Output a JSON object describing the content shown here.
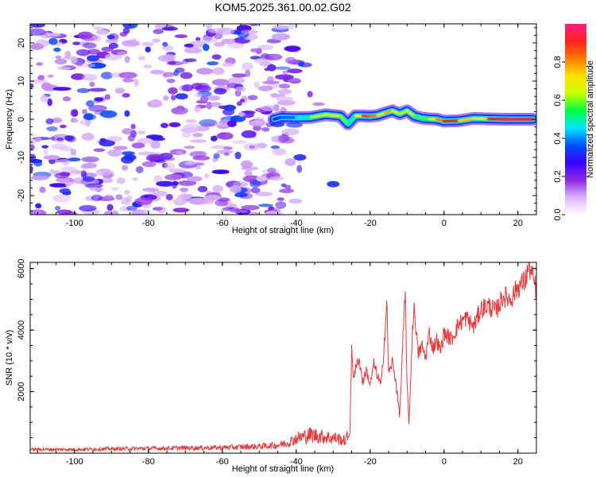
{
  "title": "KOM5.2025.361.00.02.G02",
  "colors": {
    "snr_line": "#e8383a",
    "axis": "#000000",
    "background": "#ffffff"
  },
  "chart_data": [
    {
      "type": "heatmap",
      "name": "spectrogram",
      "xlabel": "Height of straight line (km)",
      "ylabel": "Frequency (Hz)",
      "xlim": [
        -112,
        25
      ],
      "ylim": [
        -25,
        25
      ],
      "xticks": [
        -100,
        -80,
        -60,
        -40,
        -20,
        0,
        20
      ],
      "yticks": [
        -20,
        -10,
        0,
        10,
        20
      ],
      "xtick_labels": [
        "-100",
        "-80",
        "-60",
        "-40",
        "-20",
        "0",
        "20"
      ],
      "ytick_labels": [
        "-20",
        "-10",
        "0",
        "10",
        "20"
      ],
      "colorbar": {
        "label": "Normalized spectral amplitude",
        "range": [
          0,
          1
        ],
        "ticks": [
          0.0,
          0.2,
          0.4,
          0.6,
          0.8
        ],
        "tick_labels": [
          "0.0",
          "0.2",
          "0.4",
          "0.6",
          "0.8"
        ],
        "colormap": [
          "#ffffff",
          "#d9b3ff",
          "#8a2be2",
          "#3a00ff",
          "#0050ff",
          "#00e5ff",
          "#00ff40",
          "#c8ff00",
          "#ffe000",
          "#ff7a00",
          "#ff2020",
          "#ff2080"
        ]
      },
      "noise_region_x": [
        -112,
        -40
      ],
      "signal_ridge": {
        "x": [
          -46,
          -44,
          -40,
          -36,
          -32,
          -28,
          -26,
          -24,
          -22,
          -20,
          -18,
          -16,
          -14,
          -12,
          -10,
          -8,
          -6,
          -4,
          -2,
          0,
          4,
          8,
          12,
          16,
          20,
          24
        ],
        "y": [
          0.0,
          0.5,
          0.4,
          0.5,
          1.2,
          0.8,
          -1.2,
          0.9,
          0.9,
          0.8,
          1.0,
          1.6,
          2.2,
          1.4,
          2.2,
          0.8,
          0.3,
          0.1,
          0.0,
          -0.5,
          -0.4,
          0.2,
          0.1,
          0.0,
          0.0,
          0.0
        ],
        "amplitude": [
          0.25,
          0.35,
          0.4,
          0.55,
          0.7,
          0.75,
          0.45,
          0.55,
          0.8,
          0.95,
          0.7,
          0.75,
          0.8,
          0.5,
          0.75,
          0.6,
          0.55,
          0.6,
          0.7,
          0.9,
          0.9,
          0.6,
          0.85,
          0.95,
          0.92,
          0.9
        ]
      }
    },
    {
      "type": "line",
      "name": "snr",
      "xlabel": "Height of straight line (km)",
      "ylabel": "SNR (10 * v/v)",
      "xlim": [
        -112,
        25
      ],
      "ylim": [
        0,
        6200
      ],
      "xticks": [
        -100,
        -80,
        -60,
        -40,
        -20,
        0,
        20
      ],
      "yticks": [
        2000,
        4000,
        6000
      ],
      "xtick_labels": [
        "-100",
        "-80",
        "-60",
        "-40",
        "-20",
        "0",
        "20"
      ],
      "ytick_labels": [
        "2000",
        "4000",
        "6000"
      ],
      "series": [
        {
          "name": "SNR",
          "x": [
            -112,
            -100,
            -90,
            -80,
            -70,
            -60,
            -55,
            -50,
            -45,
            -42,
            -40,
            -36,
            -32,
            -29,
            -27,
            -25.5,
            -25,
            -24.5,
            -23,
            -22,
            -21,
            -20,
            -19,
            -18,
            -17,
            -16,
            -15.5,
            -15,
            -14.5,
            -14,
            -13,
            -12,
            -11,
            -10.5,
            -10,
            -9.5,
            -9,
            -8.5,
            -8,
            -7,
            -6,
            -5,
            -4,
            -3,
            -2,
            -1,
            0,
            2,
            4,
            6,
            8,
            10,
            12,
            14,
            16,
            18,
            20,
            22,
            23,
            24,
            25
          ],
          "values": [
            120,
            120,
            140,
            150,
            170,
            180,
            200,
            220,
            260,
            350,
            480,
            600,
            520,
            480,
            400,
            600,
            3300,
            2500,
            3100,
            2300,
            2700,
            2200,
            2900,
            2500,
            2200,
            3900,
            4900,
            2600,
            2700,
            3000,
            2300,
            1200,
            4000,
            5200,
            2300,
            900,
            2500,
            4200,
            4700,
            3200,
            3500,
            3100,
            3900,
            3400,
            3700,
            3300,
            3900,
            3700,
            4200,
            4400,
            4100,
            4700,
            4800,
            4600,
            5100,
            5000,
            5400,
            5600,
            6100,
            5700,
            5300
          ]
        }
      ]
    }
  ]
}
